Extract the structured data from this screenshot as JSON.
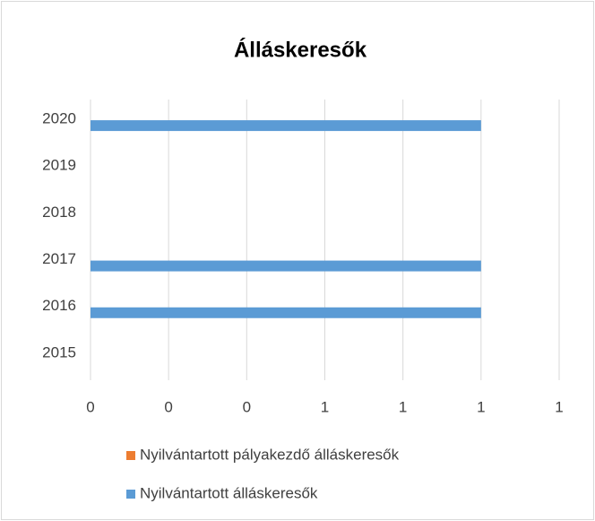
{
  "chart_data": {
    "type": "hbar",
    "title": "Álláskeresők",
    "categories": [
      "2015",
      "2016",
      "2017",
      "2018",
      "2019",
      "2020"
    ],
    "series": [
      {
        "name": "Nyilvántartott pályakezdő álláskeresők",
        "color": "#ed7d31",
        "values": [
          0,
          0,
          0,
          0,
          0,
          0
        ]
      },
      {
        "name": "Nyilvántartott álláskeresők",
        "color": "#5b9bd5",
        "values": [
          0,
          1,
          1,
          0,
          0,
          1
        ]
      }
    ],
    "xlim": [
      0,
      1.2
    ],
    "xticks": [
      0,
      {
        "value": 0.2,
        "label": "0"
      },
      {
        "value": 0.4,
        "label": "0"
      },
      {
        "value": 0.6,
        "label": "1"
      },
      {
        "value": 0.8,
        "label": "1"
      },
      1,
      {
        "value": 1.2,
        "label": "1"
      }
    ],
    "grid": true,
    "legend": "bottom"
  }
}
